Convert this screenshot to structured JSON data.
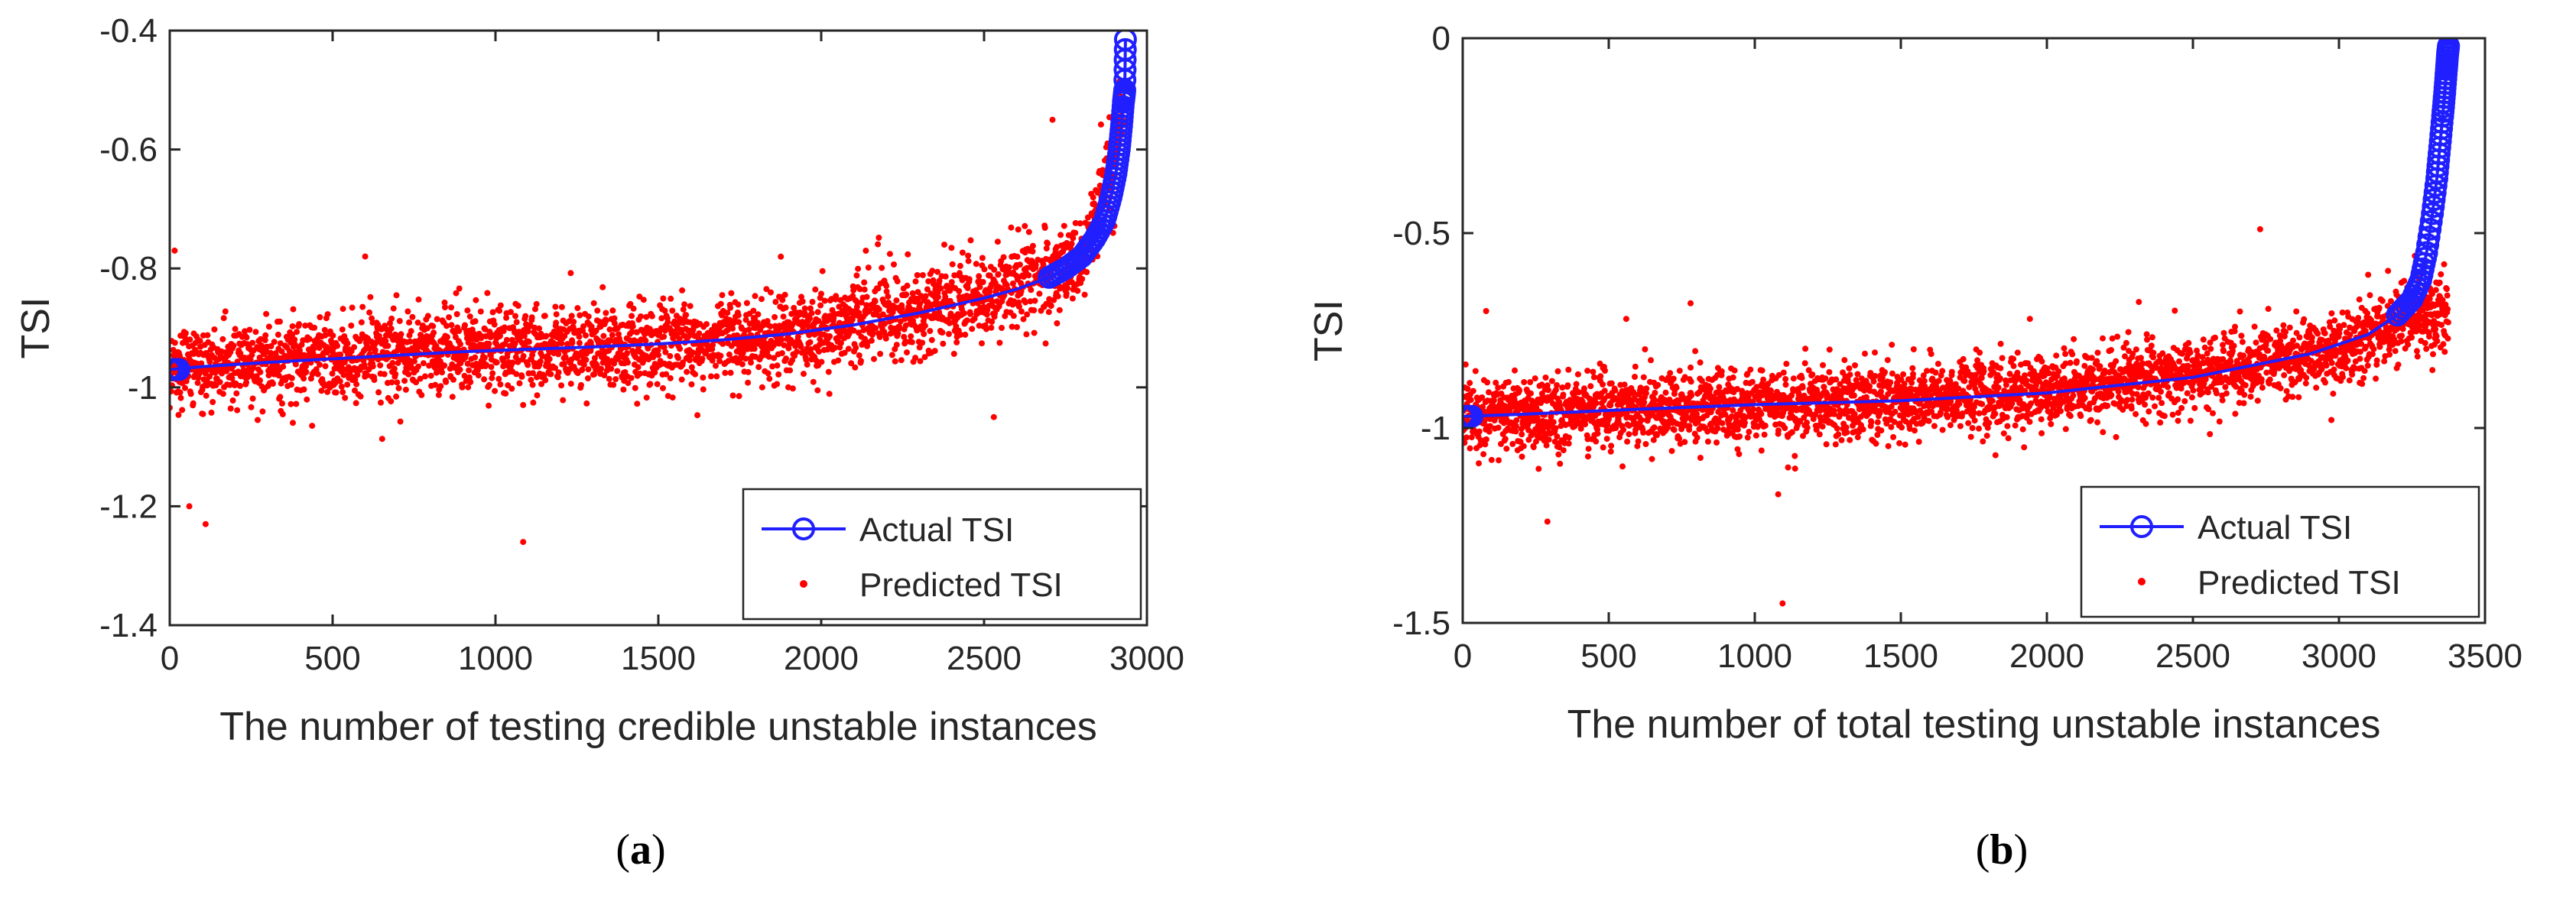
{
  "chart_data": [
    {
      "type": "scatter",
      "panel_label": "a",
      "xlabel": "The number of testing credible unstable instances",
      "ylabel": "TSI",
      "xlim": [
        0,
        3000
      ],
      "ylim": [
        -1.4,
        -0.4
      ],
      "xticks": [
        0,
        500,
        1000,
        1500,
        2000,
        2500,
        3000
      ],
      "xtick_labels": [
        "0",
        "500",
        "1000",
        "1500",
        "2000",
        "2500",
        "3000"
      ],
      "yticks": [
        -1.4,
        -1.2,
        -1.0,
        -0.8,
        -0.6,
        -0.4
      ],
      "ytick_labels": [
        "-1.4",
        "-1.2",
        "-1",
        "-0.8",
        "-0.6",
        "-0.4"
      ],
      "legend": {
        "position": "bottom-right",
        "entries": [
          "Actual TSI",
          "Predicted TSI"
        ]
      },
      "series": [
        {
          "name": "Actual TSI",
          "style": "line-circle",
          "color": "#1f1fff",
          "x": [
            0,
            100,
            300,
            500,
            700,
            900,
            1100,
            1300,
            1500,
            1700,
            1900,
            2100,
            2300,
            2500,
            2600,
            2700,
            2750,
            2800,
            2840,
            2870,
            2890,
            2905,
            2915,
            2922,
            2928,
            2932,
            2934
          ],
          "y": [
            -0.97,
            -0.965,
            -0.958,
            -0.952,
            -0.946,
            -0.94,
            -0.936,
            -0.932,
            -0.927,
            -0.92,
            -0.91,
            -0.895,
            -0.875,
            -0.85,
            -0.835,
            -0.815,
            -0.8,
            -0.78,
            -0.75,
            -0.72,
            -0.68,
            -0.64,
            -0.6,
            -0.56,
            -0.52,
            -0.5,
            -0.415
          ]
        },
        {
          "name": "Predicted TSI",
          "style": "dots",
          "color": "#ff0000",
          "count": 2934,
          "base_x": [
            0,
            500,
            1000,
            1500,
            2000,
            2500,
            2800,
            2900,
            2934
          ],
          "base_y": [
            -0.97,
            -0.952,
            -0.938,
            -0.927,
            -0.905,
            -0.85,
            -0.78,
            -0.62,
            -0.52
          ],
          "noise_sd": 0.035,
          "outlier_x": [
            15,
            60,
            110,
            600,
            1085,
            2530,
            2710
          ],
          "outlier_y": [
            -0.77,
            -1.2,
            -1.23,
            -0.78,
            -1.26,
            -1.05,
            -0.55
          ]
        }
      ]
    },
    {
      "type": "scatter",
      "panel_label": "b",
      "xlabel": "The number of total testing unstable instances",
      "ylabel": "TSI",
      "xlim": [
        0,
        3500
      ],
      "ylim": [
        -1.5,
        0
      ],
      "xticks": [
        0,
        500,
        1000,
        1500,
        2000,
        2500,
        3000,
        3500
      ],
      "xtick_labels": [
        "0",
        "500",
        "1000",
        "1500",
        "2000",
        "2500",
        "3000",
        "3500"
      ],
      "yticks": [
        -1.5,
        -1.0,
        -0.5,
        0
      ],
      "ytick_labels": [
        "-1.5",
        "-1",
        "-0.5",
        "0"
      ],
      "legend": {
        "position": "bottom-right",
        "entries": [
          "Actual TSI",
          "Predicted TSI"
        ]
      },
      "series": [
        {
          "name": "Actual TSI",
          "style": "line-circle",
          "color": "#1f1fff",
          "x": [
            0,
            200,
            500,
            1000,
            1500,
            2000,
            2500,
            2900,
            3100,
            3200,
            3250,
            3280,
            3300,
            3320,
            3335,
            3345,
            3355,
            3362,
            3368,
            3372,
            3375
          ],
          "y": [
            -0.97,
            -0.965,
            -0.955,
            -0.94,
            -0.93,
            -0.91,
            -0.87,
            -0.81,
            -0.76,
            -0.71,
            -0.67,
            -0.62,
            -0.55,
            -0.45,
            -0.36,
            -0.28,
            -0.2,
            -0.14,
            -0.08,
            -0.04,
            -0.02
          ]
        },
        {
          "name": "Predicted TSI",
          "style": "dots",
          "color": "#ff0000",
          "count": 3375,
          "base_x": [
            0,
            500,
            1000,
            1500,
            2000,
            2500,
            3000,
            3250,
            3375
          ],
          "base_y": [
            -0.975,
            -0.955,
            -0.94,
            -0.93,
            -0.905,
            -0.86,
            -0.8,
            -0.72,
            -0.7
          ],
          "noise_sd": 0.045,
          "outlier_x": [
            80,
            290,
            560,
            780,
            1080,
            1095,
            2730,
            3360
          ],
          "outlier_y": [
            -0.7,
            -1.24,
            -0.72,
            -0.68,
            -1.17,
            -1.45,
            -0.49,
            -0.58
          ]
        }
      ]
    }
  ]
}
